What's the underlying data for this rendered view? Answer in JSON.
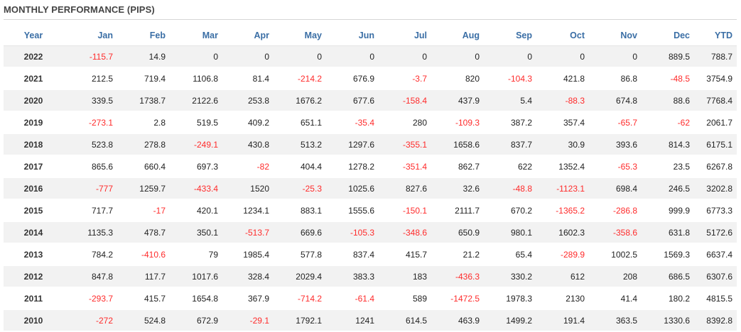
{
  "title": "MONTHLY PERFORMANCE (PIPS)",
  "columns": [
    "Year",
    "Jan",
    "Feb",
    "Mar",
    "Apr",
    "May",
    "Jun",
    "Jul",
    "Aug",
    "Sep",
    "Oct",
    "Nov",
    "Dec",
    "YTD"
  ],
  "rows": [
    [
      "2022",
      "-115.7",
      "14.9",
      "0",
      "0",
      "0",
      "0",
      "0",
      "0",
      "0",
      "0",
      "0",
      "889.5",
      "788.7"
    ],
    [
      "2021",
      "212.5",
      "719.4",
      "1106.8",
      "81.4",
      "-214.2",
      "676.9",
      "-3.7",
      "820",
      "-104.3",
      "421.8",
      "86.8",
      "-48.5",
      "3754.9"
    ],
    [
      "2020",
      "339.5",
      "1738.7",
      "2122.6",
      "253.8",
      "1676.2",
      "677.6",
      "-158.4",
      "437.9",
      "5.4",
      "-88.3",
      "674.8",
      "88.6",
      "7768.4"
    ],
    [
      "2019",
      "-273.1",
      "2.8",
      "519.5",
      "409.2",
      "651.1",
      "-35.4",
      "280",
      "-109.3",
      "387.2",
      "357.4",
      "-65.7",
      "-62",
      "2061.7"
    ],
    [
      "2018",
      "523.8",
      "278.8",
      "-249.1",
      "430.8",
      "513.2",
      "1297.6",
      "-355.1",
      "1658.6",
      "837.7",
      "30.9",
      "393.6",
      "814.3",
      "6175.1"
    ],
    [
      "2017",
      "865.6",
      "660.4",
      "697.3",
      "-82",
      "404.4",
      "1278.2",
      "-351.4",
      "862.7",
      "622",
      "1352.4",
      "-65.3",
      "23.5",
      "6267.8"
    ],
    [
      "2016",
      "-777",
      "1259.7",
      "-433.4",
      "1520",
      "-25.3",
      "1025.6",
      "827.6",
      "32.6",
      "-48.8",
      "-1123.1",
      "698.4",
      "246.5",
      "3202.8"
    ],
    [
      "2015",
      "717.7",
      "-17",
      "420.1",
      "1234.1",
      "883.1",
      "1555.6",
      "-150.1",
      "2111.7",
      "670.2",
      "-1365.2",
      "-286.8",
      "999.9",
      "6773.3"
    ],
    [
      "2014",
      "1135.3",
      "478.7",
      "350.1",
      "-513.7",
      "669.6",
      "-105.3",
      "-348.6",
      "650.9",
      "980.1",
      "1602.3",
      "-358.6",
      "631.8",
      "5172.6"
    ],
    [
      "2013",
      "784.2",
      "-410.6",
      "79",
      "1985.4",
      "577.8",
      "837.4",
      "415.7",
      "21.2",
      "65.4",
      "-289.9",
      "1002.5",
      "1569.3",
      "6637.4"
    ],
    [
      "2012",
      "847.8",
      "117.7",
      "1017.6",
      "328.4",
      "2029.4",
      "383.3",
      "183",
      "-436.3",
      "330.2",
      "612",
      "208",
      "686.5",
      "6307.6"
    ],
    [
      "2011",
      "-293.7",
      "415.7",
      "1654.8",
      "367.9",
      "-714.2",
      "-61.4",
      "589",
      "-1472.5",
      "1978.3",
      "2130",
      "41.4",
      "180.2",
      "4815.5"
    ],
    [
      "2010",
      "-272",
      "524.8",
      "672.9",
      "-29.1",
      "1792.1",
      "1241",
      "614.5",
      "463.9",
      "1499.2",
      "191.4",
      "363.5",
      "1330.6",
      "8392.8"
    ]
  ],
  "colors": {
    "header_text": "#3a6ea5",
    "negative_value": "#ff2b2b",
    "stripe": "#f2f2f2"
  }
}
